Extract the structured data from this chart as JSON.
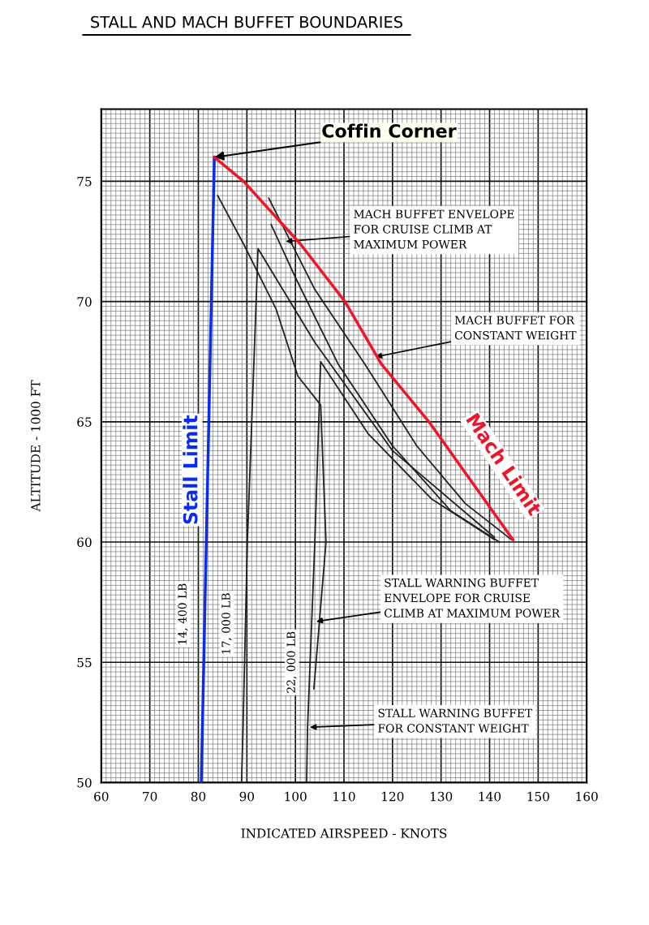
{
  "chart_data": {
    "type": "line",
    "title": "STALL AND MACH BUFFET BOUNDARIES",
    "xlabel": "INDICATED AIRSPEED - KNOTS",
    "ylabel": "ALTITUDE - 1000 FT",
    "xlim": [
      60,
      160
    ],
    "ylim": [
      50,
      78
    ],
    "xticks": [
      60,
      70,
      80,
      90,
      100,
      110,
      120,
      130,
      140,
      150,
      160
    ],
    "yticks": [
      50,
      55,
      60,
      65,
      70,
      75
    ],
    "grid": true,
    "marker": "none",
    "line_style": "solid",
    "series": [
      {
        "name": "Stall Limit",
        "color": "#0a2cf0",
        "x": [
          80.6,
          83.3
        ],
        "values": [
          50,
          76
        ]
      },
      {
        "name": "Mach Limit",
        "color": "#f01428",
        "x": [
          83.3,
          89.3,
          101,
          110.2,
          117.7,
          127.5,
          144.8
        ],
        "values": [
          76,
          75,
          72.4,
          70,
          67.4,
          65,
          60.1
        ]
      },
      {
        "color": "#222222",
        "x": [
          84,
          89.3,
          96,
          100.5,
          105.2,
          106.3,
          103.8
        ],
        "values": [
          74.4,
          72.4,
          69.7,
          66.9,
          65.7,
          60,
          53.9
        ]
      },
      {
        "color": "#222222",
        "x": [
          88.9,
          89.2,
          90.1,
          92.3,
          104,
          120,
          141
        ],
        "values": [
          50,
          52.2,
          60,
          72.2,
          68.3,
          63.8,
          60.2
        ]
      },
      {
        "color": "#222222",
        "x": [
          102.3,
          102.5,
          104,
          105.2,
          115,
          128,
          141
        ],
        "values": [
          50,
          52.3,
          60,
          67.5,
          64.5,
          61.8,
          60.1
        ]
      },
      {
        "color": "#222222",
        "x": [
          94.5,
          104,
          114.3,
          125,
          135,
          144.5
        ],
        "values": [
          74.3,
          70.5,
          67.4,
          64,
          61.6,
          60.1
        ]
      },
      {
        "color": "#222222",
        "x": [
          95,
          100,
          108.8,
          120,
          132,
          142
        ],
        "values": [
          73.2,
          71,
          67.4,
          64,
          61.3,
          60
        ]
      }
    ],
    "annotations": [
      {
        "text": "Coffin Corner",
        "x": 83.3,
        "y": 76
      },
      {
        "text": "MACH BUFFET ENVELOPE\nFOR CRUISE CLIMB AT\nMAXIMUM POWER",
        "x": 98,
        "y": 72.5
      },
      {
        "text": "MACH BUFFET FOR\nCONSTANT WEIGHT",
        "x": 116.5,
        "y": 67.7
      },
      {
        "text": "STALL WARNING BUFFET\nENVELOPE FOR CRUISE\nCLIMB AT MAXIMUM POWER",
        "x": 104.3,
        "y": 56.7
      },
      {
        "text": "STALL WARNING BUFFET\nFOR CONSTANT WEIGHT",
        "x": 103,
        "y": 52.3
      },
      {
        "text": "14, 400 LB",
        "x": 80.6,
        "y": 57
      },
      {
        "text": "17, 000 LB",
        "x": 89.6,
        "y": 56.6
      },
      {
        "text": "22, 000 LB",
        "x": 103,
        "y": 55
      }
    ]
  }
}
